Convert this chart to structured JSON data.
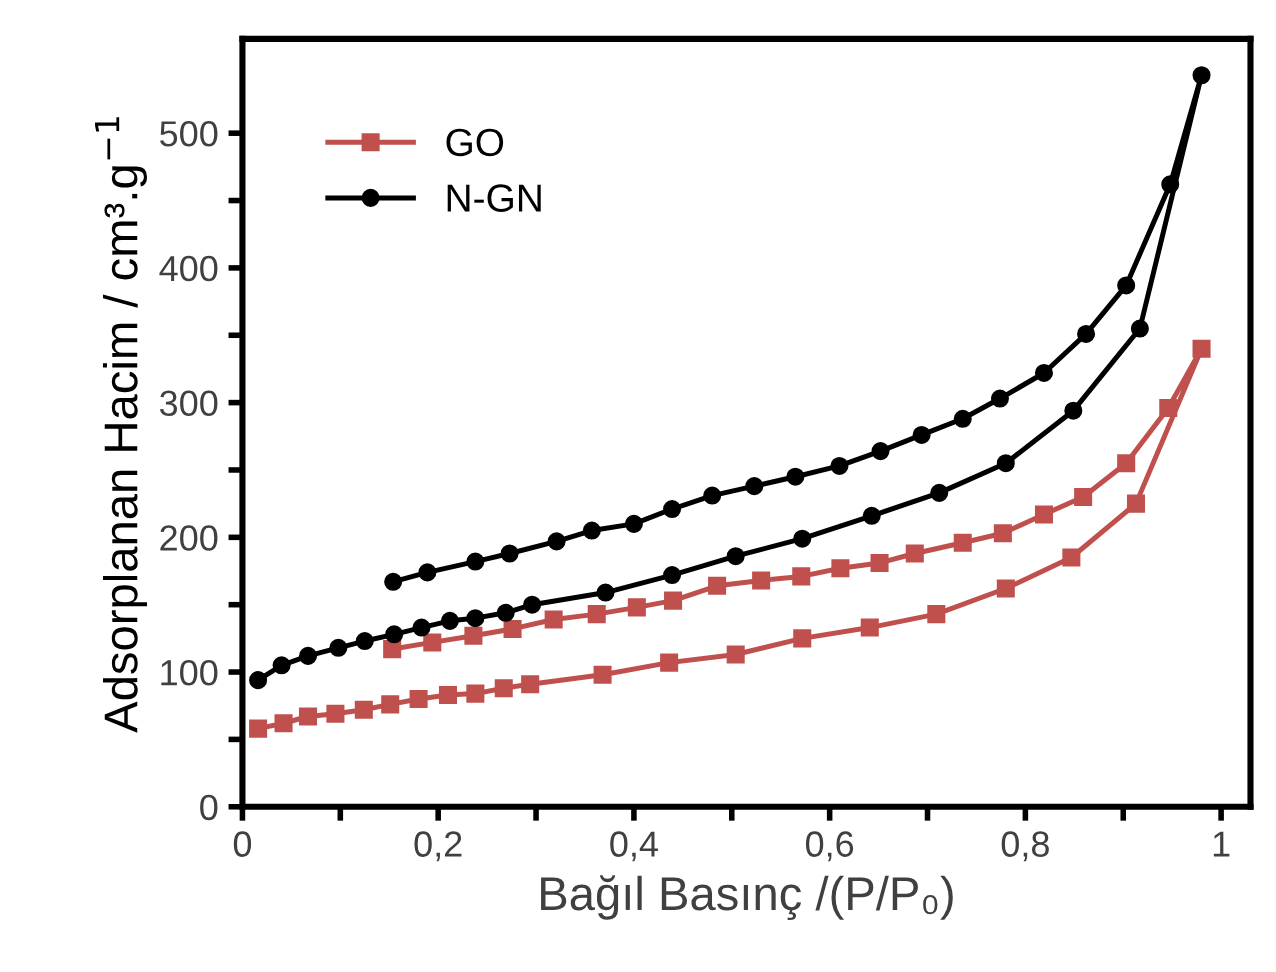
{
  "chart_data": {
    "type": "line",
    "xlabel": "Bağıl Basınç /(P/P₀)",
    "ylabel": "Adsorplanan Hacim / cm³.g$^{−1}$",
    "xlim": [
      0,
      1.03
    ],
    "xticks": [
      0,
      {
        "value": 0.1,
        "label": null
      },
      {
        "value": 0.2,
        "label": "0,2"
      },
      {
        "value": 0.3,
        "label": null
      },
      {
        "value": 0.4,
        "label": "0,4"
      },
      {
        "value": 0.5,
        "label": null
      },
      {
        "value": 0.6,
        "label": "0,6"
      },
      {
        "value": 0.7,
        "label": null
      },
      {
        "value": 0.8,
        "label": "0,8"
      },
      {
        "value": 0.9,
        "label": null
      },
      1
    ],
    "ylim": [
      0,
      570
    ],
    "yticks": [
      0,
      {
        "value": 50,
        "label": null
      },
      100,
      {
        "value": 150,
        "label": null
      },
      200,
      {
        "value": 250,
        "label": null
      },
      300,
      {
        "value": 350,
        "label": null
      },
      400,
      {
        "value": 450,
        "label": null
      },
      500
    ],
    "grid": false,
    "legend": "top left",
    "line_style": "solid",
    "series": [
      {
        "name": "GO",
        "color": "#c0504d",
        "marker": "square",
        "x": [
          0.016,
          0.042,
          0.067,
          0.095,
          0.124,
          0.151,
          0.18,
          0.21,
          0.238,
          0.267,
          0.294,
          0.368,
          0.436,
          0.504,
          0.572,
          0.641,
          0.709,
          0.78,
          0.847,
          0.913,
          0.98,
          0.946,
          0.903,
          0.859,
          0.819,
          0.777,
          0.736,
          0.687,
          0.651,
          0.611,
          0.571,
          0.53,
          0.485,
          0.44,
          0.403,
          0.362,
          0.318,
          0.276,
          0.236,
          0.194,
          0.153
        ],
        "values": [
          58,
          62,
          67,
          69,
          72,
          76,
          80,
          83,
          84,
          88,
          91,
          98,
          107,
          113,
          125,
          133,
          143,
          162,
          185,
          225,
          340,
          296,
          255,
          230,
          217,
          203,
          196,
          188,
          181,
          177,
          171,
          168,
          164,
          153,
          148,
          143,
          139,
          132,
          127,
          122,
          117
        ]
      },
      {
        "name": "N-GN",
        "color": "#000000",
        "marker": "circle",
        "x": [
          0.016,
          0.04,
          0.067,
          0.098,
          0.125,
          0.155,
          0.183,
          0.212,
          0.238,
          0.269,
          0.296,
          0.371,
          0.439,
          0.504,
          0.572,
          0.643,
          0.712,
          0.78,
          0.849,
          0.917,
          0.98,
          0.948,
          0.903,
          0.862,
          0.819,
          0.774,
          0.736,
          0.694,
          0.652,
          0.61,
          0.565,
          0.523,
          0.48,
          0.439,
          0.4,
          0.357,
          0.321,
          0.273,
          0.238,
          0.189,
          0.154
        ],
        "values": [
          94,
          105,
          112,
          118,
          123,
          128,
          133,
          138,
          140,
          144,
          150,
          159,
          172,
          186,
          199,
          216,
          233,
          255,
          294,
          355,
          543,
          462,
          387,
          351,
          322,
          303,
          288,
          276,
          264,
          253,
          245,
          238,
          231,
          221,
          210,
          205,
          197,
          188,
          182,
          174,
          167
        ]
      }
    ]
  }
}
